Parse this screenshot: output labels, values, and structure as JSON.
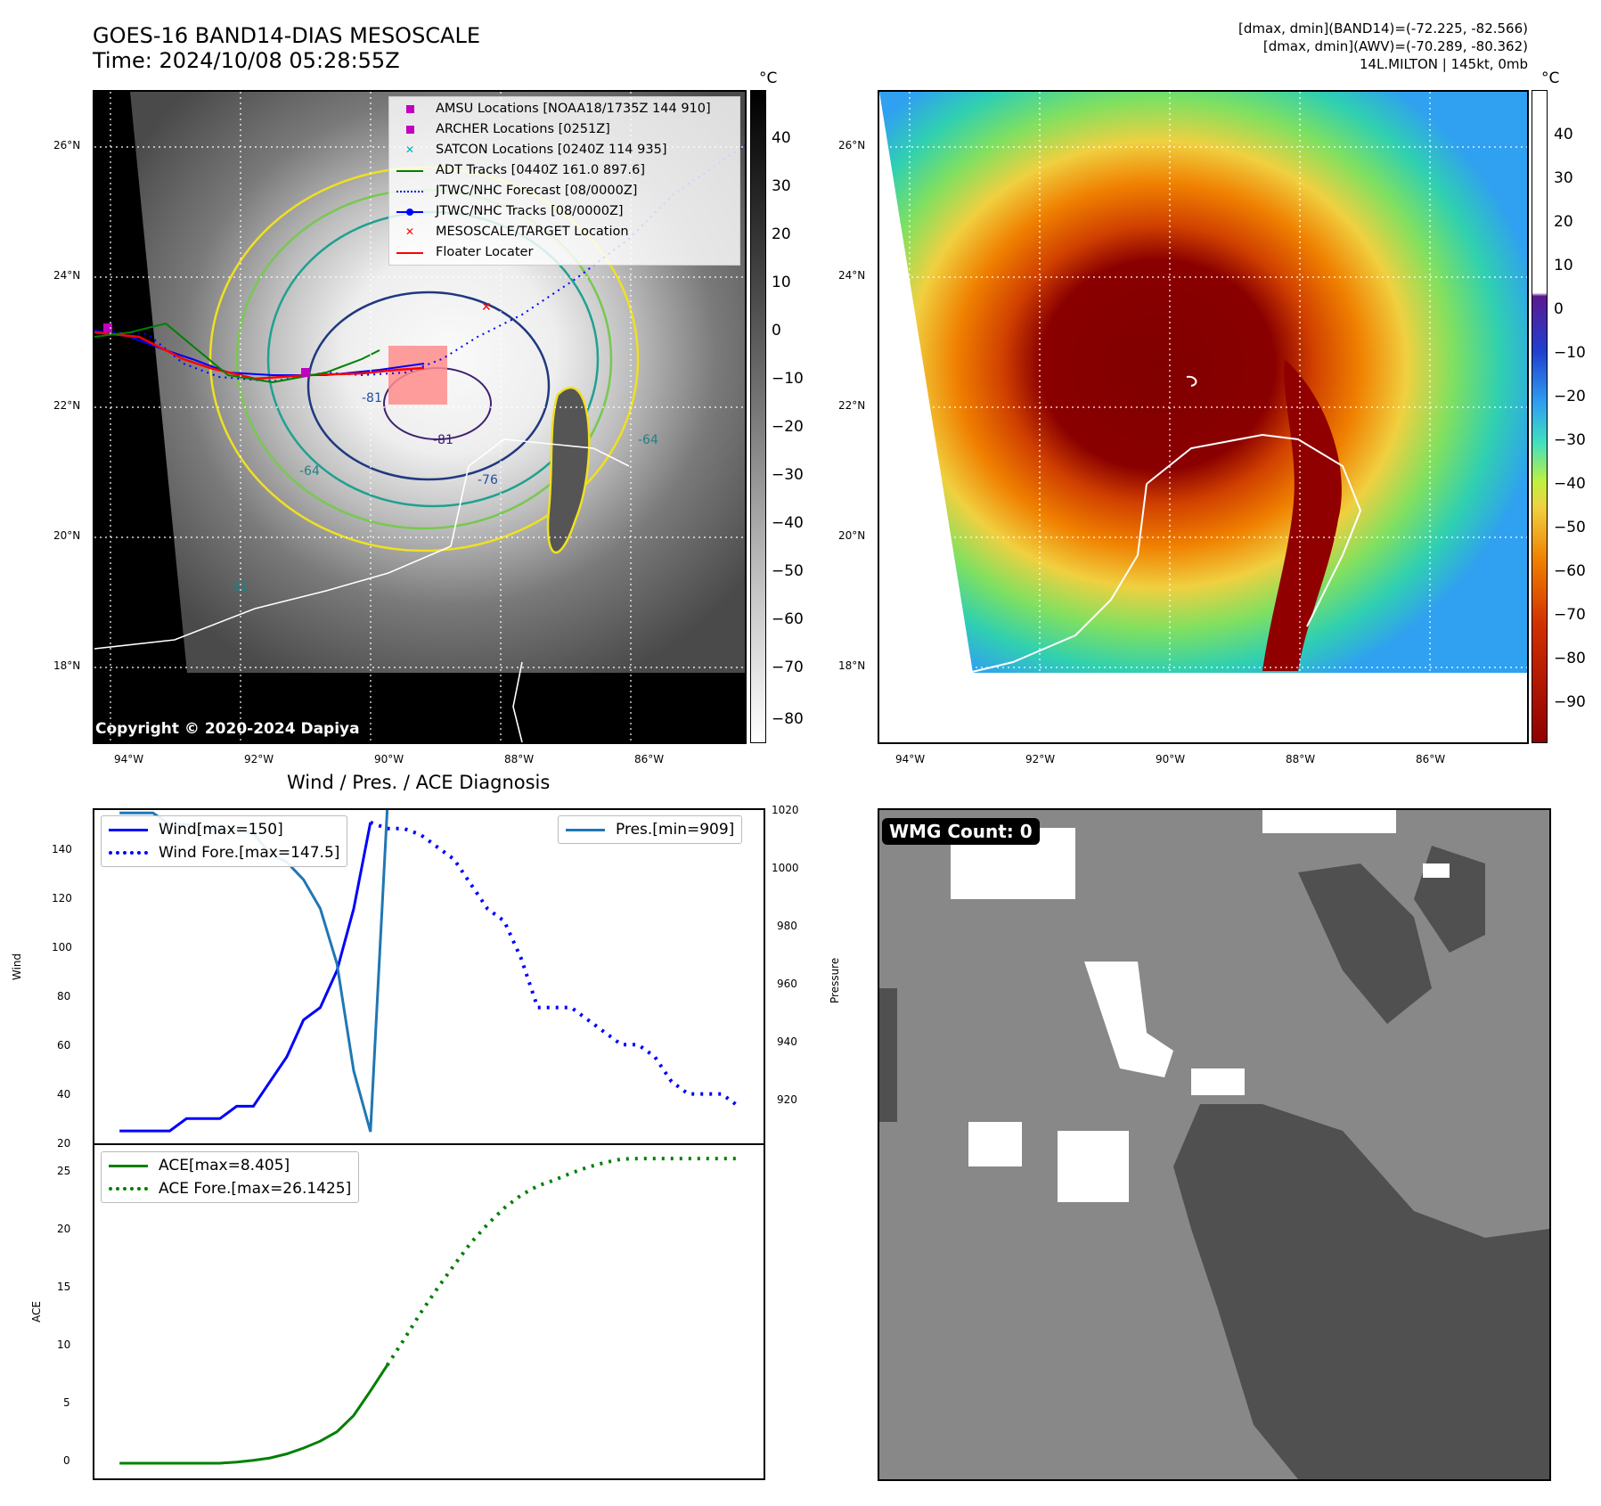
{
  "header": {
    "title_line1": "GOES-16 BAND14-DIAS MESOSCALE",
    "title_line2": "Time: 2024/10/08 05:28:55Z",
    "right_line1": "[dmax, dmin](BAND14)=(-72.225, -82.566)",
    "right_line2": "[dmax, dmin](AWV)=(-70.289, -80.362)",
    "right_line3": "14L.MILTON | 145kt, 0mb"
  },
  "map_axes": {
    "lon_ticks": [
      "94°W",
      "92°W",
      "90°W",
      "88°W",
      "86°W"
    ],
    "lat_ticks": [
      "26°N",
      "24°N",
      "22°N",
      "20°N",
      "18°N"
    ]
  },
  "ir_panel": {
    "colorbar_unit": "°C",
    "colorbar_ticks": [
      "40",
      "30",
      "20",
      "10",
      "0",
      "−10",
      "−20",
      "−30",
      "−40",
      "−50",
      "−60",
      "−70",
      "−80"
    ],
    "contour_labels": [
      "-81",
      "-76",
      "-64",
      "-31",
      "-64",
      "-81"
    ],
    "copyright": "Copyright © 2020-2024 Dapiya",
    "legend": [
      {
        "label": "AMSU Locations [NOAA18/1735Z 144 910]",
        "kind": "square",
        "color": "#c000c0"
      },
      {
        "label": "ARCHER Locations [0251Z]",
        "kind": "square",
        "color": "#c000c0"
      },
      {
        "label": "SATCON Locations [0240Z 114 935]",
        "kind": "x",
        "color": "#00b0b0"
      },
      {
        "label": "ADT Tracks [0440Z 161.0 897.6]",
        "kind": "line",
        "color": "#008000"
      },
      {
        "label": "JTWC/NHC Forecast [08/0000Z]",
        "kind": "dotted",
        "color": "#0000ff"
      },
      {
        "label": "JTWC/NHC Tracks [08/0000Z]",
        "kind": "line-dot",
        "color": "#0000ff"
      },
      {
        "label": "MESOSCALE/TARGET Location",
        "kind": "x",
        "color": "#ff0000"
      },
      {
        "label": "Floater Locater",
        "kind": "line",
        "color": "#ff0000"
      }
    ]
  },
  "awv_panel": {
    "colorbar_unit": "°C",
    "colorbar_ticks": [
      "40",
      "30",
      "20",
      "10",
      "0",
      "−10",
      "−20",
      "−30",
      "−40",
      "−50",
      "−60",
      "−70",
      "−80",
      "−90"
    ]
  },
  "diagnosis": {
    "title": "Wind / Pres. / ACE Diagnosis",
    "wind_ylabel": "Wind",
    "pres_ylabel": "Pressure",
    "ace_ylabel": "ACE",
    "wind_ticks": [
      "140",
      "120",
      "100",
      "80",
      "60",
      "40",
      "20"
    ],
    "pres_ticks": [
      "1020",
      "1000",
      "980",
      "960",
      "940",
      "920"
    ],
    "ace_ticks": [
      "25",
      "20",
      "15",
      "10",
      "5",
      "0"
    ],
    "legend_wind": "Wind[max=150]",
    "legend_wind_fore": "Wind Fore.[max=147.5]",
    "legend_pres": "Pres.[min=909]",
    "legend_ace": "ACE[max=8.405]",
    "legend_ace_fore": "ACE Fore.[max=26.1425]"
  },
  "wmg_panel": {
    "label": "WMG Count: 0"
  },
  "chart_data": [
    {
      "type": "line",
      "title": "Wind / Pres. / ACE Diagnosis",
      "ylabel": "Wind",
      "ylim": [
        20,
        155
      ],
      "series": [
        {
          "name": "Wind[max=150]",
          "x": [
            0,
            1,
            2,
            3,
            4,
            5,
            6,
            7,
            8,
            9,
            10,
            11,
            12,
            13,
            14,
            15
          ],
          "values": [
            25,
            25,
            25,
            25,
            30,
            30,
            30,
            35,
            35,
            45,
            55,
            70,
            75,
            90,
            115,
            150
          ]
        },
        {
          "name": "Wind Fore.[max=147.5]",
          "x": [
            15,
            16,
            17,
            18,
            19,
            20,
            21,
            22,
            23,
            24,
            25,
            26,
            27,
            28,
            29,
            30,
            31,
            32,
            33,
            34,
            35,
            36,
            37
          ],
          "values": [
            150,
            147.5,
            147.5,
            145,
            140,
            135,
            125,
            115,
            110,
            95,
            75,
            75,
            75,
            70,
            65,
            60,
            60,
            55,
            45,
            40,
            40,
            40,
            35
          ]
        }
      ]
    },
    {
      "type": "line",
      "ylabel": "Pressure",
      "ylim": [
        905,
        1020
      ],
      "series": [
        {
          "name": "Pres.[min=909]",
          "x": [
            0,
            1,
            2,
            3,
            4,
            5,
            6,
            7,
            8,
            9,
            10,
            11,
            12,
            13,
            14,
            15,
            16
          ],
          "values": [
            1019,
            1019,
            1019,
            1015,
            1015,
            1014,
            1013,
            1013,
            1012,
            1005,
            1002,
            996,
            986,
            967,
            930,
            909,
            1020
          ]
        }
      ]
    },
    {
      "type": "line",
      "ylabel": "ACE",
      "ylim": [
        -1.3,
        27.3
      ],
      "series": [
        {
          "name": "ACE[max=8.405]",
          "x": [
            0,
            1,
            2,
            3,
            4,
            5,
            6,
            7,
            8,
            9,
            10,
            11,
            12,
            13,
            14,
            15,
            16
          ],
          "values": [
            0,
            0,
            0,
            0,
            0,
            0,
            0,
            0.1,
            0.25,
            0.45,
            0.8,
            1.3,
            1.9,
            2.7,
            4.1,
            6.2,
            8.405
          ]
        },
        {
          "name": "ACE Fore.[max=26.1425]",
          "x": [
            16,
            17,
            18,
            19,
            20,
            21,
            22,
            23,
            24,
            25,
            26,
            27,
            28,
            29,
            30,
            31,
            32,
            33,
            34,
            35,
            36,
            37
          ],
          "values": [
            8.405,
            10.6,
            12.9,
            15.0,
            17.0,
            18.9,
            20.5,
            21.9,
            23.0,
            23.8,
            24.3,
            24.9,
            25.4,
            25.8,
            26.1,
            26.1425,
            26.1425,
            26.1425,
            26.1425,
            26.1425,
            26.1425,
            26.1425
          ]
        }
      ]
    }
  ]
}
